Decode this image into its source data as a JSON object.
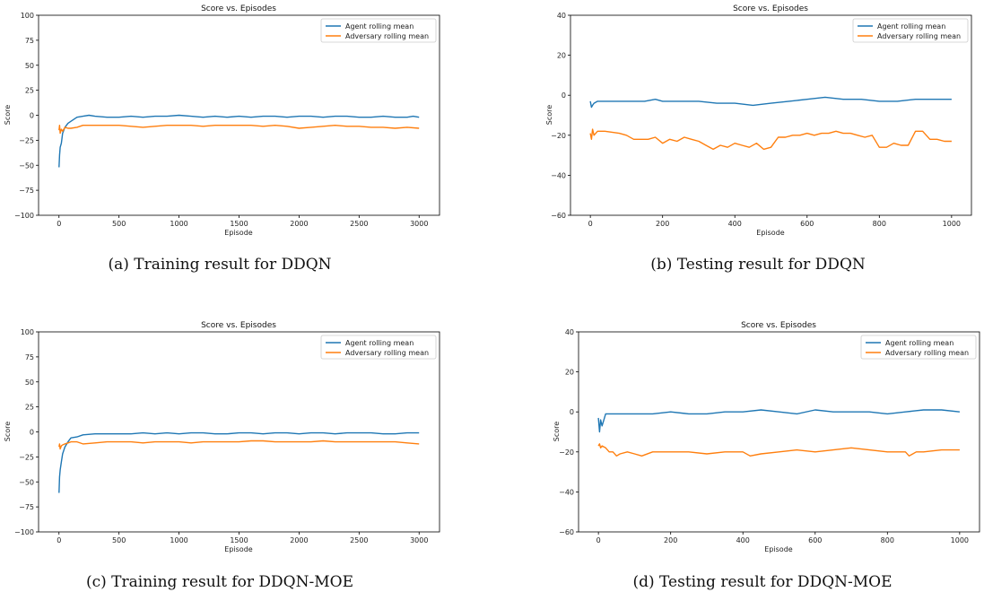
{
  "colors": {
    "agent": "#1f77b4",
    "adversary": "#ff7f0e"
  },
  "chart_data": [
    {
      "type": "line",
      "caption": "(a) Training result for DDQN",
      "title": "Score vs. Episodes",
      "xlabel": "Episode",
      "ylabel": "Score",
      "xlim": [
        -170,
        3170
      ],
      "ylim": [
        -100,
        100
      ],
      "xticks": [
        0,
        500,
        1000,
        1500,
        2000,
        2500,
        3000
      ],
      "yticks": [
        100,
        75,
        50,
        25,
        0,
        -25,
        -50,
        -75,
        -100
      ],
      "legend": "top-right",
      "series": [
        {
          "name": "Agent rolling mean",
          "color": "#1f77b4",
          "x": [
            0,
            5,
            10,
            20,
            30,
            50,
            75,
            100,
            150,
            200,
            250,
            300,
            400,
            500,
            600,
            700,
            800,
            900,
            1000,
            1100,
            1200,
            1300,
            1400,
            1500,
            1600,
            1700,
            1800,
            1900,
            2000,
            2100,
            2200,
            2300,
            2400,
            2500,
            2600,
            2700,
            2800,
            2900,
            2950,
            3000
          ],
          "y": [
            -52,
            -40,
            -32,
            -28,
            -18,
            -12,
            -8,
            -6,
            -2,
            -1,
            0,
            -1,
            -2,
            -2,
            -1,
            -2,
            -1,
            -1,
            0,
            -1,
            -2,
            -1,
            -2,
            -1,
            -2,
            -1,
            -1,
            -2,
            -1,
            -1,
            -2,
            -1,
            -1,
            -2,
            -2,
            -1,
            -2,
            -2,
            -1,
            -2
          ]
        },
        {
          "name": "Adversary rolling mean",
          "color": "#ff7f0e",
          "x": [
            0,
            5,
            10,
            20,
            30,
            50,
            75,
            100,
            150,
            200,
            300,
            400,
            500,
            600,
            700,
            800,
            900,
            1000,
            1100,
            1200,
            1300,
            1400,
            1500,
            1600,
            1700,
            1800,
            1900,
            2000,
            2100,
            2200,
            2300,
            2400,
            2500,
            2600,
            2700,
            2800,
            2900,
            3000
          ],
          "y": [
            -15,
            -10,
            -18,
            -14,
            -16,
            -12,
            -13,
            -13,
            -12,
            -10,
            -10,
            -10,
            -10,
            -11,
            -12,
            -11,
            -10,
            -10,
            -10,
            -11,
            -10,
            -10,
            -10,
            -10,
            -11,
            -10,
            -11,
            -13,
            -12,
            -11,
            -10,
            -11,
            -11,
            -12,
            -12,
            -13,
            -12,
            -13
          ]
        }
      ]
    },
    {
      "type": "line",
      "caption": "(b) Testing result for DDQN",
      "title": "Score vs. Episodes",
      "xlabel": "Episode",
      "ylabel": "Score",
      "xlim": [
        -55,
        1055
      ],
      "ylim": [
        -60,
        40
      ],
      "xticks": [
        0,
        200,
        400,
        600,
        800,
        1000
      ],
      "yticks": [
        40,
        20,
        0,
        -20,
        -40,
        -60
      ],
      "legend": "top-right",
      "series": [
        {
          "name": "Agent rolling mean",
          "color": "#1f77b4",
          "x": [
            0,
            3,
            6,
            10,
            20,
            40,
            60,
            100,
            150,
            180,
            200,
            250,
            300,
            350,
            400,
            450,
            500,
            550,
            600,
            650,
            700,
            750,
            800,
            850,
            900,
            950,
            1000
          ],
          "y": [
            -3,
            -6,
            -5,
            -4,
            -3,
            -3,
            -3,
            -3,
            -3,
            -2,
            -3,
            -3,
            -3,
            -4,
            -4,
            -5,
            -4,
            -3,
            -2,
            -1,
            -2,
            -2,
            -3,
            -3,
            -2,
            -2,
            -2
          ]
        },
        {
          "name": "Adversary rolling mean",
          "color": "#ff7f0e",
          "x": [
            0,
            3,
            6,
            10,
            20,
            40,
            80,
            100,
            120,
            160,
            180,
            200,
            220,
            240,
            260,
            280,
            300,
            320,
            340,
            360,
            380,
            400,
            420,
            440,
            460,
            480,
            500,
            520,
            540,
            560,
            580,
            600,
            620,
            640,
            660,
            680,
            700,
            720,
            740,
            760,
            780,
            800,
            820,
            840,
            860,
            880,
            900,
            920,
            940,
            960,
            980,
            1000
          ],
          "y": [
            -19,
            -22,
            -17,
            -20,
            -18,
            -18,
            -19,
            -20,
            -22,
            -22,
            -21,
            -24,
            -22,
            -23,
            -21,
            -22,
            -23,
            -25,
            -27,
            -25,
            -26,
            -24,
            -25,
            -26,
            -24,
            -27,
            -26,
            -21,
            -21,
            -20,
            -20,
            -19,
            -20,
            -19,
            -19,
            -18,
            -19,
            -19,
            -20,
            -21,
            -20,
            -26,
            -26,
            -24,
            -25,
            -25,
            -18,
            -18,
            -22,
            -22,
            -23,
            -23
          ]
        }
      ]
    },
    {
      "type": "line",
      "caption": "(c) Training result for DDQN-MOE",
      "title": "Score vs. Episodes",
      "xlabel": "Episode",
      "ylabel": "Score",
      "xlim": [
        -170,
        3170
      ],
      "ylim": [
        -100,
        100
      ],
      "xticks": [
        0,
        500,
        1000,
        1500,
        2000,
        2500,
        3000
      ],
      "yticks": [
        100,
        75,
        50,
        25,
        0,
        -25,
        -50,
        -75,
        -100
      ],
      "legend": "top-right",
      "series": [
        {
          "name": "Agent rolling mean",
          "color": "#1f77b4",
          "x": [
            0,
            5,
            10,
            20,
            30,
            50,
            75,
            100,
            150,
            200,
            300,
            400,
            500,
            600,
            700,
            800,
            900,
            1000,
            1100,
            1200,
            1300,
            1400,
            1500,
            1600,
            1700,
            1800,
            1900,
            2000,
            2100,
            2200,
            2300,
            2400,
            2500,
            2600,
            2700,
            2800,
            2900,
            3000
          ],
          "y": [
            -61,
            -45,
            -38,
            -30,
            -22,
            -15,
            -10,
            -6,
            -5,
            -3,
            -2,
            -2,
            -2,
            -2,
            -1,
            -2,
            -1,
            -2,
            -1,
            -1,
            -2,
            -2,
            -1,
            -1,
            -2,
            -1,
            -1,
            -2,
            -1,
            -1,
            -2,
            -1,
            -1,
            -1,
            -2,
            -2,
            -1,
            -1
          ]
        },
        {
          "name": "Adversary rolling mean",
          "color": "#ff7f0e",
          "x": [
            0,
            5,
            10,
            20,
            30,
            50,
            75,
            100,
            150,
            200,
            300,
            400,
            500,
            600,
            700,
            800,
            900,
            1000,
            1100,
            1200,
            1300,
            1400,
            1500,
            1600,
            1700,
            1800,
            1900,
            2000,
            2100,
            2200,
            2300,
            2400,
            2500,
            2600,
            2700,
            2800,
            2900,
            3000
          ],
          "y": [
            -15,
            -12,
            -17,
            -14,
            -13,
            -12,
            -11,
            -10,
            -10,
            -12,
            -11,
            -10,
            -10,
            -10,
            -11,
            -10,
            -10,
            -10,
            -11,
            -10,
            -10,
            -10,
            -10,
            -9,
            -9,
            -10,
            -10,
            -10,
            -10,
            -9,
            -10,
            -10,
            -10,
            -10,
            -10,
            -10,
            -11,
            -12
          ]
        }
      ]
    },
    {
      "type": "line",
      "caption": "(d) Testing result for DDQN-MOE",
      "title": "Score vs. Episodes",
      "xlabel": "Episode",
      "ylabel": "Score",
      "xlim": [
        -55,
        1055
      ],
      "ylim": [
        -60,
        40
      ],
      "xticks": [
        0,
        200,
        400,
        600,
        800,
        1000
      ],
      "yticks": [
        40,
        20,
        0,
        -20,
        -40,
        -60
      ],
      "legend": "top-right",
      "series": [
        {
          "name": "Agent rolling mean",
          "color": "#1f77b4",
          "x": [
            0,
            3,
            6,
            10,
            20,
            40,
            60,
            100,
            150,
            200,
            250,
            300,
            350,
            400,
            450,
            500,
            550,
            600,
            650,
            700,
            750,
            800,
            850,
            900,
            950,
            1000
          ],
          "y": [
            -3,
            -10,
            -4,
            -7,
            -1,
            -1,
            -1,
            -1,
            -1,
            0,
            -1,
            -1,
            0,
            0,
            1,
            0,
            -1,
            1,
            0,
            0,
            0,
            -1,
            0,
            1,
            1,
            0
          ]
        },
        {
          "name": "Adversary rolling mean",
          "color": "#ff7f0e",
          "x": [
            0,
            3,
            6,
            10,
            20,
            30,
            40,
            50,
            60,
            80,
            100,
            120,
            150,
            200,
            250,
            300,
            350,
            400,
            420,
            450,
            500,
            550,
            600,
            650,
            700,
            750,
            800,
            850,
            860,
            880,
            900,
            950,
            1000
          ],
          "y": [
            -17,
            -16,
            -18,
            -17,
            -18,
            -20,
            -20,
            -22,
            -21,
            -20,
            -21,
            -22,
            -20,
            -20,
            -20,
            -21,
            -20,
            -20,
            -22,
            -21,
            -20,
            -19,
            -20,
            -19,
            -18,
            -19,
            -20,
            -20,
            -22,
            -20,
            -20,
            -19,
            -19
          ]
        }
      ]
    }
  ]
}
